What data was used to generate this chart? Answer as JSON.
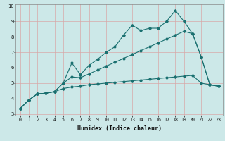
{
  "title": "",
  "xlabel": "Humidex (Indice chaleur)",
  "ylabel": "",
  "background_color": "#cce8e8",
  "grid_color": "#d8a8a8",
  "line_color": "#1a7070",
  "xlim": [
    -0.5,
    23.5
  ],
  "ylim": [
    2.9,
    10.1
  ],
  "xticks": [
    0,
    1,
    2,
    3,
    4,
    5,
    6,
    7,
    8,
    9,
    10,
    11,
    12,
    13,
    14,
    15,
    16,
    17,
    18,
    19,
    20,
    21,
    22,
    23
  ],
  "yticks": [
    3,
    4,
    5,
    6,
    7,
    8,
    9,
    10
  ],
  "curve1_x": [
    0,
    1,
    2,
    3,
    4,
    5,
    6,
    7,
    8,
    9,
    10,
    11,
    12,
    13,
    14,
    15,
    16,
    17,
    18,
    19,
    20,
    21,
    22,
    23
  ],
  "curve1_y": [
    3.35,
    3.9,
    4.3,
    4.35,
    4.45,
    5.0,
    6.3,
    5.55,
    6.15,
    6.55,
    7.0,
    7.35,
    8.1,
    8.75,
    8.4,
    8.55,
    8.55,
    9.0,
    9.7,
    9.0,
    8.2,
    6.7,
    4.9,
    4.8
  ],
  "curve2_x": [
    0,
    1,
    2,
    3,
    4,
    5,
    6,
    7,
    8,
    9,
    10,
    11,
    12,
    13,
    14,
    15,
    16,
    17,
    18,
    19,
    20,
    21,
    22,
    23
  ],
  "curve2_y": [
    3.35,
    3.9,
    4.3,
    4.35,
    4.45,
    5.0,
    5.4,
    5.35,
    5.6,
    5.85,
    6.1,
    6.35,
    6.6,
    6.85,
    7.1,
    7.35,
    7.6,
    7.85,
    8.1,
    8.35,
    8.2,
    6.7,
    4.9,
    4.8
  ],
  "curve3_x": [
    0,
    1,
    2,
    3,
    4,
    5,
    6,
    7,
    8,
    9,
    10,
    11,
    12,
    13,
    14,
    15,
    16,
    17,
    18,
    19,
    20,
    21,
    22,
    23
  ],
  "curve3_y": [
    3.35,
    3.9,
    4.3,
    4.35,
    4.45,
    4.65,
    4.75,
    4.8,
    4.9,
    4.95,
    5.0,
    5.05,
    5.1,
    5.15,
    5.2,
    5.25,
    5.3,
    5.35,
    5.4,
    5.45,
    5.5,
    5.0,
    4.9,
    4.8
  ],
  "marker": "D",
  "marker_size": 1.8,
  "line_width": 0.8,
  "xlabel_fontsize": 6.0,
  "tick_fontsize": 4.8
}
